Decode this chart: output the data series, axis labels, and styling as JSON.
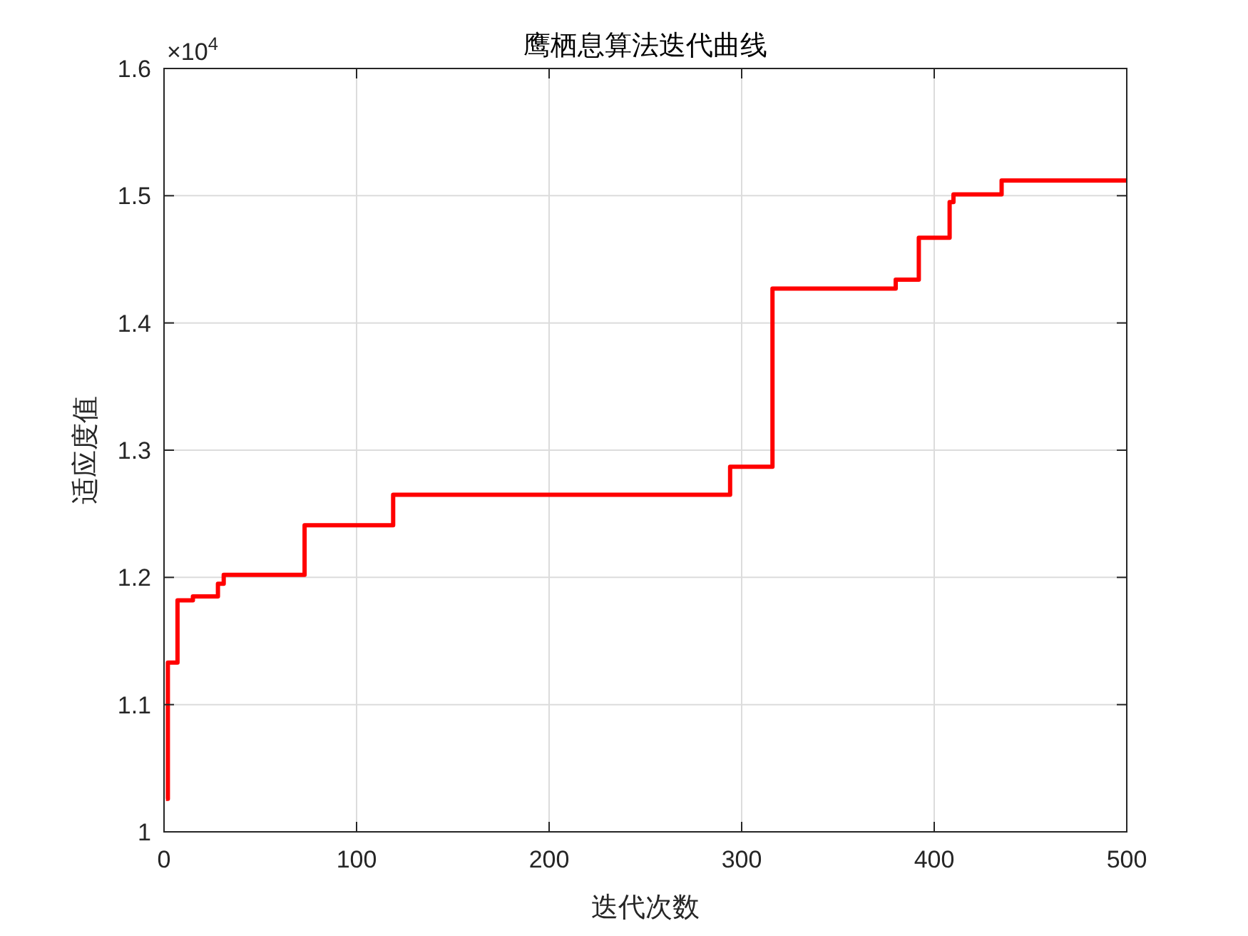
{
  "chart_data": {
    "type": "step",
    "title": "鹰栖息算法迭代曲线",
    "xlabel": "迭代次数",
    "ylabel": "适应度值",
    "annotations": [
      "×10$^{4}$"
    ],
    "series": [
      {
        "color": "#ff0000",
        "x": [
          1,
          2,
          7,
          15,
          28,
          31,
          73,
          119,
          294,
          316,
          380,
          392,
          408,
          410,
          435,
          500
        ],
        "values": [
          1.026,
          1.133,
          1.182,
          1.185,
          1.195,
          1.202,
          1.241,
          1.265,
          1.287,
          1.427,
          1.434,
          1.467,
          1.495,
          1.501,
          1.512,
          1.512
        ]
      }
    ],
    "xlim": [
      0,
      500
    ],
    "xticks": [
      0,
      100,
      200,
      300,
      400,
      500
    ],
    "ylim": [
      1,
      1.6
    ],
    "yticks": [
      1,
      1.1,
      1.2,
      1.3,
      1.4,
      1.5,
      1.6
    ],
    "grid": true
  }
}
